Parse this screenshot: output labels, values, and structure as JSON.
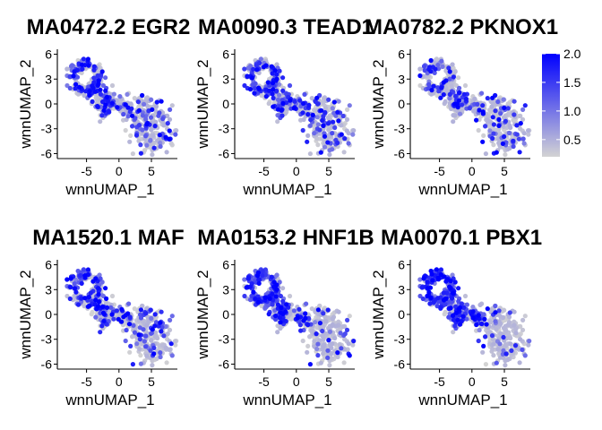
{
  "chart_data": {
    "type": "scatter",
    "grid": false,
    "legend_placement": "right",
    "color_scale": {
      "low": "#d3d3d3",
      "high": "#0000ff",
      "domain": [
        0.2,
        2.0
      ],
      "ticks": [
        0.5,
        1.0,
        1.5,
        2.0
      ],
      "tick_labels": [
        "0.5",
        "1.0",
        "1.5",
        "2.0"
      ]
    },
    "xlabel": "wnnUMAP_1",
    "ylabel": "wnnUMAP_2",
    "xlim": [
      -9.5,
      9
    ],
    "ylim": [
      -6.6,
      6.6
    ],
    "xticks": [
      -5,
      0,
      5
    ],
    "xtick_labels": [
      "-5",
      "0",
      "5"
    ],
    "yticks": [
      -6,
      -3,
      0,
      3,
      6
    ],
    "ytick_labels": [
      "-6",
      "-3",
      "0",
      "3",
      "6"
    ],
    "panels": [
      {
        "title": "MA0472.2 EGR2",
        "hot": "upper"
      },
      {
        "title": "MA0090.3 TEAD1",
        "hot": "mixed"
      },
      {
        "title": "MA0782.2 PKNOX1",
        "hot": "sparse"
      },
      {
        "title": "MA1520.1 MAF",
        "hot": "upper"
      },
      {
        "title": "MA0153.2 HNF1B",
        "hot": "loop"
      },
      {
        "title": "MA0070.1 PBX1",
        "hot": "loop"
      }
    ]
  }
}
